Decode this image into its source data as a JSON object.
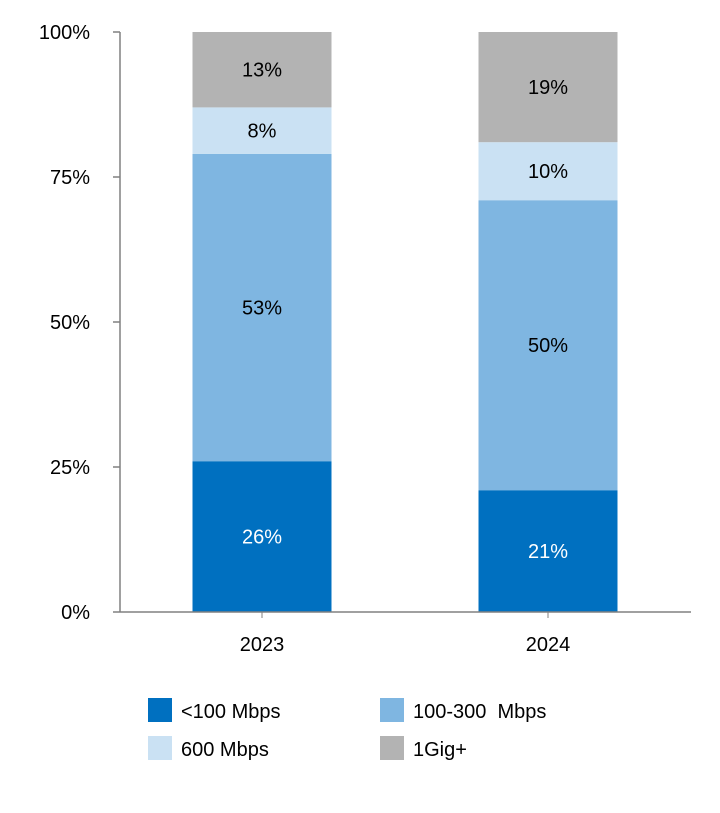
{
  "chart_data": {
    "type": "bar",
    "stacked": true,
    "categories": [
      "2023",
      "2024"
    ],
    "series": [
      {
        "name": "<100 Mbps",
        "color": "#0070C0",
        "label_color": "#ffffff",
        "values": [
          26,
          21
        ]
      },
      {
        "name": "100-300  Mbps",
        "color": "#7FB6E1",
        "label_color": "#000000",
        "values": [
          53,
          50
        ]
      },
      {
        "name": "600 Mbps",
        "color": "#CAE1F3",
        "label_color": "#000000",
        "values": [
          8,
          10
        ]
      },
      {
        "name": "1Gig+",
        "color": "#B3B3B3",
        "label_color": "#000000",
        "values": [
          13,
          19
        ]
      }
    ],
    "data_labels": [
      [
        "26%",
        "21%"
      ],
      [
        "53%",
        "50%"
      ],
      [
        "8%",
        "10%"
      ],
      [
        "13%",
        "19%"
      ]
    ],
    "ylim": [
      0,
      100
    ],
    "yticks": [
      0,
      25,
      50,
      75,
      100
    ],
    "ytick_labels": [
      "0%",
      "25%",
      "50%",
      "75%",
      "100%"
    ],
    "grid": false,
    "legend_position": "bottom",
    "title": "",
    "xlabel": "",
    "ylabel": ""
  }
}
